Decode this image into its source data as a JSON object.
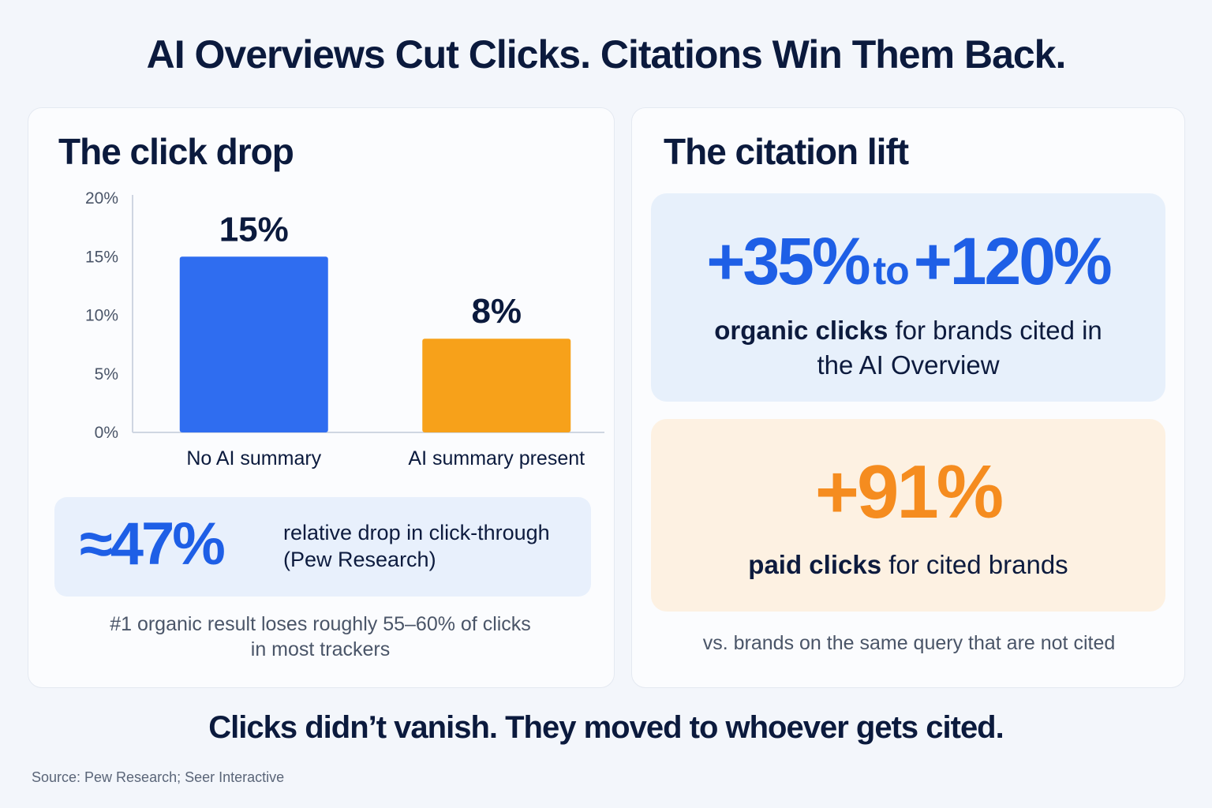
{
  "title": "AI Overviews Cut Clicks. Citations Win Them Back.",
  "left_panel": {
    "heading": "The click drop",
    "stat": {
      "value": "≈47%",
      "description_line1": "relative drop in click-through",
      "description_line2": "(Pew Research)"
    },
    "footnote_line1": "#1 organic result loses roughly 55–60% of clicks",
    "footnote_line2": "in most trackers"
  },
  "chart_data": {
    "type": "bar",
    "categories": [
      "No AI summary",
      "AI summary present"
    ],
    "values": [
      15,
      8
    ],
    "data_labels": [
      "15%",
      "8%"
    ],
    "colors": [
      "#2f6df0",
      "#f7a11a"
    ],
    "yticks": [
      "0%",
      "5%",
      "10%",
      "15%",
      "20%"
    ],
    "ylim": [
      0,
      20
    ],
    "grid": false
  },
  "right_panel": {
    "heading": "The citation lift",
    "lift": {
      "low": "+35%",
      "connector": "to",
      "high": "+120%",
      "desc_bold": "organic clicks",
      "desc_rest_line1": " for brands cited in",
      "desc_line2": "the AI Overview"
    },
    "paid": {
      "value": "+91%",
      "desc_bold": "paid clicks",
      "desc_rest": " for cited brands"
    },
    "footnote": "vs. brands on the same query that are not cited"
  },
  "conclusion": "Clicks didn’t vanish. They moved to whoever gets cited.",
  "source": "Source: Pew Research; Seer Interactive",
  "colors": {
    "blue": "#1e5fe6",
    "orange": "#f58c1f",
    "navy": "#0b1a3d"
  }
}
